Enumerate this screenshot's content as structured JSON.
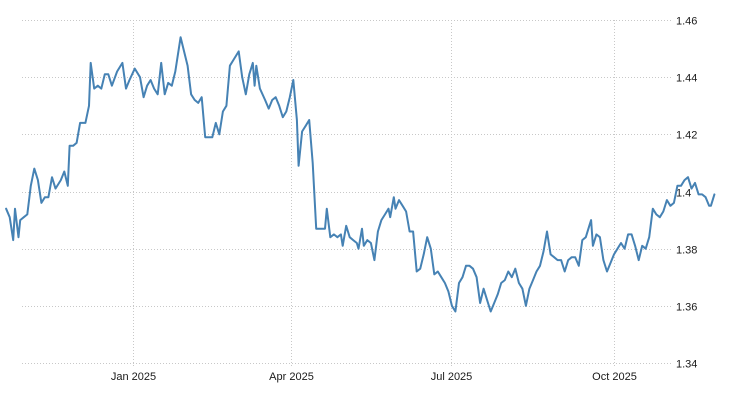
{
  "chart_data": {
    "type": "line",
    "title": "",
    "xlabel": "",
    "ylabel": "",
    "ylim": [
      1.34,
      1.46
    ],
    "grid": true,
    "legend": null,
    "y_axis_position": "right",
    "y_ticks": [
      "1.46",
      "1.44",
      "1.42",
      "1.4",
      "1.38",
      "1.36",
      "1.34"
    ],
    "x_ticks": [
      "Jan 2025",
      "Apr 2025",
      "Jul 2025",
      "Oct 2025"
    ],
    "line_color": "#4682b4",
    "series": [
      {
        "name": "value",
        "points": [
          [
            "2024-10-21",
            1.394
          ],
          [
            "2024-10-23",
            1.391
          ],
          [
            "2024-10-25",
            1.383
          ],
          [
            "2024-10-26",
            1.394
          ],
          [
            "2024-10-28",
            1.384
          ],
          [
            "2024-10-29",
            1.39
          ],
          [
            "2024-10-31",
            1.391
          ],
          [
            "2024-11-02",
            1.392
          ],
          [
            "2024-11-04",
            1.402
          ],
          [
            "2024-11-06",
            1.408
          ],
          [
            "2024-11-08",
            1.404
          ],
          [
            "2024-11-10",
            1.396
          ],
          [
            "2024-11-12",
            1.398
          ],
          [
            "2024-11-14",
            1.398
          ],
          [
            "2024-11-16",
            1.405
          ],
          [
            "2024-11-18",
            1.401
          ],
          [
            "2024-11-21",
            1.404
          ],
          [
            "2024-11-23",
            1.407
          ],
          [
            "2024-11-25",
            1.402
          ],
          [
            "2024-11-26",
            1.416
          ],
          [
            "2024-11-28",
            1.416
          ],
          [
            "2024-11-30",
            1.417
          ],
          [
            "2024-12-02",
            1.424
          ],
          [
            "2024-12-05",
            1.424
          ],
          [
            "2024-12-07",
            1.43
          ],
          [
            "2024-12-08",
            1.445
          ],
          [
            "2024-12-10",
            1.436
          ],
          [
            "2024-12-12",
            1.437
          ],
          [
            "2024-12-14",
            1.436
          ],
          [
            "2024-12-16",
            1.441
          ],
          [
            "2024-12-18",
            1.441
          ],
          [
            "2024-12-20",
            1.437
          ],
          [
            "2024-12-23",
            1.442
          ],
          [
            "2024-12-26",
            1.445
          ],
          [
            "2024-12-28",
            1.436
          ],
          [
            "2024-12-30",
            1.439
          ],
          [
            "2025-01-02",
            1.443
          ],
          [
            "2025-01-05",
            1.44
          ],
          [
            "2025-01-07",
            1.433
          ],
          [
            "2025-01-09",
            1.437
          ],
          [
            "2025-01-11",
            1.439
          ],
          [
            "2025-01-13",
            1.436
          ],
          [
            "2025-01-15",
            1.434
          ],
          [
            "2025-01-17",
            1.445
          ],
          [
            "2025-01-19",
            1.434
          ],
          [
            "2025-01-21",
            1.438
          ],
          [
            "2025-01-23",
            1.437
          ],
          [
            "2025-01-25",
            1.442
          ],
          [
            "2025-01-28",
            1.454
          ],
          [
            "2025-02-01",
            1.444
          ],
          [
            "2025-02-03",
            1.434
          ],
          [
            "2025-02-05",
            1.432
          ],
          [
            "2025-02-07",
            1.431
          ],
          [
            "2025-02-09",
            1.433
          ],
          [
            "2025-02-11",
            1.419
          ],
          [
            "2025-02-13",
            1.419
          ],
          [
            "2025-02-15",
            1.419
          ],
          [
            "2025-02-17",
            1.424
          ],
          [
            "2025-02-19",
            1.42
          ],
          [
            "2025-02-21",
            1.428
          ],
          [
            "2025-02-23",
            1.43
          ],
          [
            "2025-02-25",
            1.444
          ],
          [
            "2025-02-27",
            1.446
          ],
          [
            "2025-03-02",
            1.449
          ],
          [
            "2025-03-04",
            1.44
          ],
          [
            "2025-03-06",
            1.434
          ],
          [
            "2025-03-08",
            1.441
          ],
          [
            "2025-03-10",
            1.445
          ],
          [
            "2025-03-11",
            1.437
          ],
          [
            "2025-03-12",
            1.444
          ],
          [
            "2025-03-14",
            1.436
          ],
          [
            "2025-03-17",
            1.432
          ],
          [
            "2025-03-19",
            1.429
          ],
          [
            "2025-03-21",
            1.432
          ],
          [
            "2025-03-23",
            1.433
          ],
          [
            "2025-03-25",
            1.43
          ],
          [
            "2025-03-27",
            1.426
          ],
          [
            "2025-03-29",
            1.428
          ],
          [
            "2025-03-31",
            1.433
          ],
          [
            "2025-04-02",
            1.439
          ],
          [
            "2025-04-04",
            1.425
          ],
          [
            "2025-04-05",
            1.409
          ],
          [
            "2025-04-07",
            1.421
          ],
          [
            "2025-04-09",
            1.423
          ],
          [
            "2025-04-11",
            1.425
          ],
          [
            "2025-04-13",
            1.41
          ],
          [
            "2025-04-15",
            1.387
          ],
          [
            "2025-04-18",
            1.387
          ],
          [
            "2025-04-20",
            1.387
          ],
          [
            "2025-04-21",
            1.394
          ],
          [
            "2025-04-23",
            1.384
          ],
          [
            "2025-04-25",
            1.385
          ],
          [
            "2025-04-27",
            1.384
          ],
          [
            "2025-04-29",
            1.385
          ],
          [
            "2025-04-30",
            1.381
          ],
          [
            "2025-05-02",
            1.388
          ],
          [
            "2025-05-04",
            1.384
          ],
          [
            "2025-05-06",
            1.383
          ],
          [
            "2025-05-08",
            1.382
          ],
          [
            "2025-05-09",
            1.38
          ],
          [
            "2025-05-11",
            1.387
          ],
          [
            "2025-05-12",
            1.381
          ],
          [
            "2025-05-14",
            1.383
          ],
          [
            "2025-05-16",
            1.382
          ],
          [
            "2025-05-18",
            1.376
          ],
          [
            "2025-05-20",
            1.386
          ],
          [
            "2025-05-22",
            1.39
          ],
          [
            "2025-05-24",
            1.392
          ],
          [
            "2025-05-26",
            1.394
          ],
          [
            "2025-05-27",
            1.391
          ],
          [
            "2025-05-29",
            1.398
          ],
          [
            "2025-05-30",
            1.394
          ],
          [
            "2025-06-01",
            1.397
          ],
          [
            "2025-06-03",
            1.395
          ],
          [
            "2025-06-05",
            1.393
          ],
          [
            "2025-06-07",
            1.386
          ],
          [
            "2025-06-09",
            1.386
          ],
          [
            "2025-06-11",
            1.372
          ],
          [
            "2025-06-13",
            1.373
          ],
          [
            "2025-06-15",
            1.378
          ],
          [
            "2025-06-17",
            1.384
          ],
          [
            "2025-06-19",
            1.38
          ],
          [
            "2025-06-21",
            1.371
          ],
          [
            "2025-06-23",
            1.372
          ],
          [
            "2025-06-25",
            1.37
          ],
          [
            "2025-06-27",
            1.368
          ],
          [
            "2025-06-29",
            1.365
          ],
          [
            "2025-07-01",
            1.36
          ],
          [
            "2025-07-03",
            1.358
          ],
          [
            "2025-07-05",
            1.368
          ],
          [
            "2025-07-07",
            1.37
          ],
          [
            "2025-07-09",
            1.374
          ],
          [
            "2025-07-11",
            1.374
          ],
          [
            "2025-07-13",
            1.373
          ],
          [
            "2025-07-15",
            1.37
          ],
          [
            "2025-07-17",
            1.361
          ],
          [
            "2025-07-19",
            1.366
          ],
          [
            "2025-07-21",
            1.362
          ],
          [
            "2025-07-23",
            1.358
          ],
          [
            "2025-07-25",
            1.361
          ],
          [
            "2025-07-27",
            1.364
          ],
          [
            "2025-07-29",
            1.368
          ],
          [
            "2025-07-31",
            1.369
          ],
          [
            "2025-08-02",
            1.372
          ],
          [
            "2025-08-04",
            1.37
          ],
          [
            "2025-08-06",
            1.373
          ],
          [
            "2025-08-08",
            1.368
          ],
          [
            "2025-08-10",
            1.366
          ],
          [
            "2025-08-12",
            1.36
          ],
          [
            "2025-08-14",
            1.366
          ],
          [
            "2025-08-16",
            1.369
          ],
          [
            "2025-08-18",
            1.372
          ],
          [
            "2025-08-20",
            1.374
          ],
          [
            "2025-08-22",
            1.379
          ],
          [
            "2025-08-24",
            1.386
          ],
          [
            "2025-08-26",
            1.378
          ],
          [
            "2025-08-28",
            1.377
          ],
          [
            "2025-08-30",
            1.376
          ],
          [
            "2025-09-01",
            1.376
          ],
          [
            "2025-09-03",
            1.372
          ],
          [
            "2025-09-05",
            1.376
          ],
          [
            "2025-09-07",
            1.377
          ],
          [
            "2025-09-09",
            1.377
          ],
          [
            "2025-09-11",
            1.374
          ],
          [
            "2025-09-13",
            1.383
          ],
          [
            "2025-09-15",
            1.384
          ],
          [
            "2025-09-17",
            1.388
          ],
          [
            "2025-09-18",
            1.39
          ],
          [
            "2025-09-19",
            1.381
          ],
          [
            "2025-09-21",
            1.385
          ],
          [
            "2025-09-23",
            1.384
          ],
          [
            "2025-09-25",
            1.376
          ],
          [
            "2025-09-27",
            1.372
          ],
          [
            "2025-09-29",
            1.375
          ],
          [
            "2025-10-01",
            1.378
          ],
          [
            "2025-10-03",
            1.38
          ],
          [
            "2025-10-05",
            1.382
          ],
          [
            "2025-10-07",
            1.38
          ],
          [
            "2025-10-09",
            1.385
          ],
          [
            "2025-10-11",
            1.385
          ],
          [
            "2025-10-13",
            1.381
          ],
          [
            "2025-10-15",
            1.376
          ],
          [
            "2025-10-17",
            1.381
          ],
          [
            "2025-10-19",
            1.38
          ],
          [
            "2025-10-21",
            1.384
          ],
          [
            "2025-10-23",
            1.394
          ],
          [
            "2025-10-25",
            1.392
          ],
          [
            "2025-10-27",
            1.391
          ],
          [
            "2025-10-29",
            1.393
          ],
          [
            "2025-10-31",
            1.397
          ],
          [
            "2025-11-02",
            1.395
          ],
          [
            "2025-11-04",
            1.396
          ],
          [
            "2025-11-06",
            1.402
          ],
          [
            "2025-11-08",
            1.402
          ],
          [
            "2025-11-10",
            1.404
          ],
          [
            "2025-11-12",
            1.405
          ],
          [
            "2025-11-14",
            1.401
          ],
          [
            "2025-11-16",
            1.403
          ],
          [
            "2025-11-18",
            1.399
          ],
          [
            "2025-11-20",
            1.399
          ],
          [
            "2025-11-22",
            1.398
          ],
          [
            "2025-11-24",
            1.395
          ],
          [
            "2025-11-25",
            1.395
          ],
          [
            "2025-11-27",
            1.399
          ]
        ]
      }
    ]
  }
}
